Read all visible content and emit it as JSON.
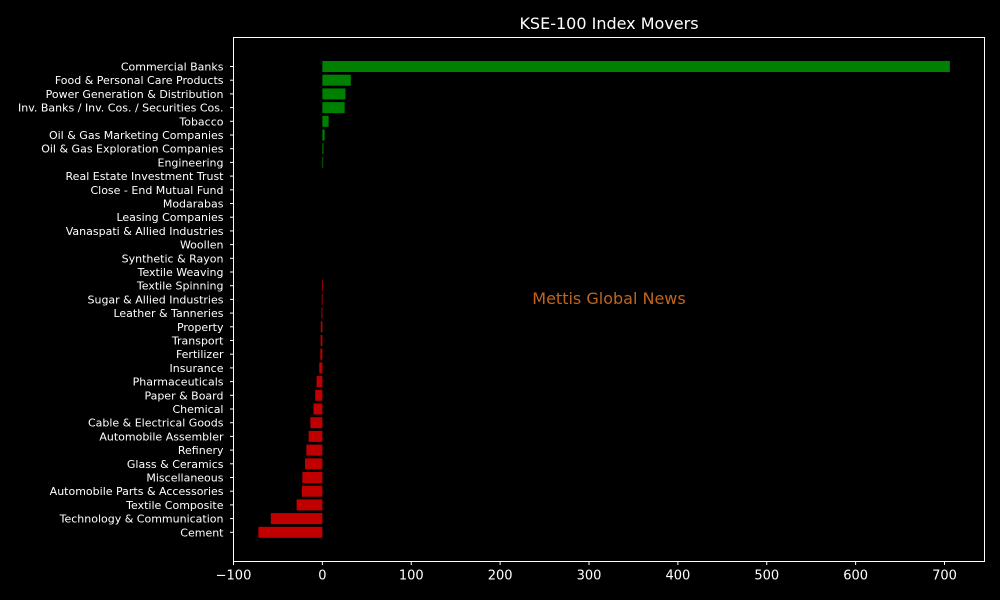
{
  "chart_data": {
    "type": "bar",
    "orientation": "horizontal",
    "title": "KSE-100 Index Movers",
    "xlabel": "",
    "ylabel": "",
    "xlim": [
      -100,
      745
    ],
    "xticks": [
      -100,
      0,
      100,
      200,
      300,
      400,
      500,
      600,
      700
    ],
    "grid": false,
    "watermark": "Mettis Global News",
    "colors": {
      "background": "#000000",
      "axes_edge": "#ffffff",
      "text": "#ffffff",
      "positive": "#008000",
      "negative": "#c00000",
      "watermark": "#c0651e"
    },
    "categories": [
      "Commercial Banks",
      "Food & Personal Care Products",
      "Power Generation & Distribution",
      "Inv. Banks / Inv. Cos. / Securities Cos.",
      "Tobacco",
      "Oil & Gas Marketing Companies",
      "Oil & Gas Exploration Companies",
      "Engineering",
      "Real Estate Investment Trust",
      "Close - End Mutual Fund",
      "Modarabas",
      "Leasing Companies",
      "Vanaspati & Allied Industries",
      "Woollen",
      "Synthetic & Rayon",
      "Textile Weaving",
      "Textile Spinning",
      "Sugar & Allied Industries",
      "Leather & Tanneries",
      "Property",
      "Transport",
      "Fertilizer",
      "Insurance",
      "Pharmaceuticals",
      "Paper & Board",
      "Chemical",
      "Cable & Electrical Goods",
      "Automobile Assembler",
      "Refinery",
      "Glass & Ceramics",
      "Miscellaneous",
      "Automobile Parts & Accessories",
      "Textile Composite",
      "Technology & Communication",
      "Cement"
    ],
    "values": [
      706,
      32,
      26,
      25,
      7,
      2.5,
      1.2,
      0.8,
      0,
      0,
      0,
      0,
      0,
      0,
      0,
      0,
      -0.5,
      -0.7,
      -1,
      -1.8,
      -2,
      -2.3,
      -3.5,
      -6.5,
      -8,
      -10,
      -13.5,
      -15.5,
      -18,
      -19.5,
      -22.5,
      -23,
      -29,
      -58,
      -72
    ]
  }
}
